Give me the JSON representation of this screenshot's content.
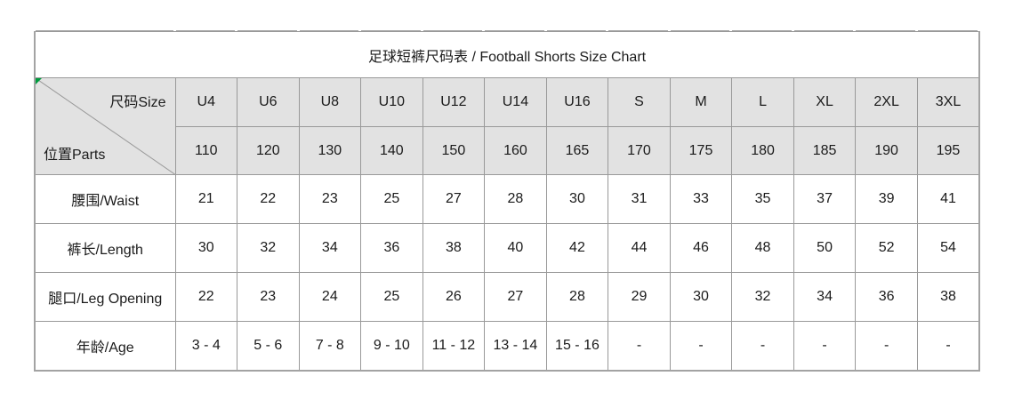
{
  "chart_data": {
    "type": "table",
    "title": "足球短裤尺码表 / Football Shorts Size Chart",
    "corner": {
      "size_label": "尺码Size",
      "parts_label": "位置Parts"
    },
    "columns": {
      "sizes": [
        "U4",
        "U6",
        "U8",
        "U10",
        "U12",
        "U14",
        "U16",
        "S",
        "M",
        "L",
        "XL",
        "2XL",
        "3XL"
      ],
      "heights": [
        "110",
        "120",
        "130",
        "140",
        "150",
        "160",
        "165",
        "170",
        "175",
        "180",
        "185",
        "190",
        "195"
      ]
    },
    "rows": [
      {
        "label": "腰围/Waist",
        "values": [
          "21",
          "22",
          "23",
          "25",
          "27",
          "28",
          "30",
          "31",
          "33",
          "35",
          "37",
          "39",
          "41"
        ]
      },
      {
        "label": "裤长/Length",
        "values": [
          "30",
          "32",
          "34",
          "36",
          "38",
          "40",
          "42",
          "44",
          "46",
          "48",
          "50",
          "52",
          "54"
        ]
      },
      {
        "label": "腿口/Leg Opening",
        "values": [
          "22",
          "23",
          "24",
          "25",
          "26",
          "27",
          "28",
          "29",
          "30",
          "32",
          "34",
          "36",
          "38"
        ]
      },
      {
        "label": "年龄/Age",
        "values": [
          "3 - 4",
          "5 - 6",
          "7 - 8",
          "9 - 10",
          "11 - 12",
          "13 - 14",
          "15 - 16",
          "-",
          "-",
          "-",
          "-",
          "-",
          "-"
        ]
      }
    ],
    "layout": {
      "legend_position": "none",
      "grid": true
    },
    "colors": {
      "header_bg": "#e2e2e2",
      "grid_border": "#999999",
      "outer_border": "#a3a3a3",
      "corner_marker": "#009b3e",
      "text": "#1b1b1b",
      "background": "#ffffff"
    }
  }
}
